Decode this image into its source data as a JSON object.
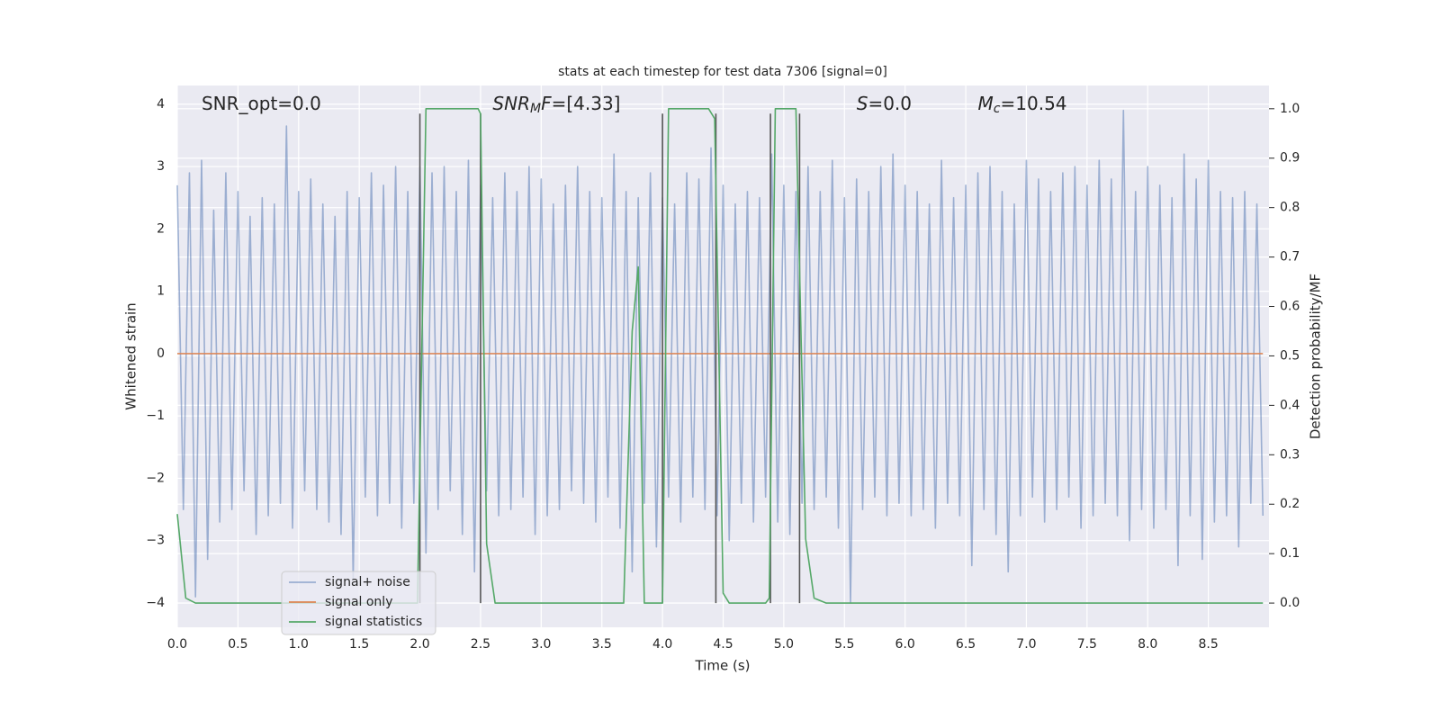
{
  "chart_data": {
    "type": "line",
    "title": "stats at each timestep for test data 7306 [signal=0]",
    "xlabel": "Time (s)",
    "ylabel": "Whitened strain",
    "y2label": "Detection probability/MF",
    "xlim": [
      0,
      9.0
    ],
    "ylim": [
      -4.39,
      4.3
    ],
    "y2lim": [
      -0.049,
      1.047
    ],
    "xticks": [
      {
        "value": 0,
        "label": "0.0"
      },
      {
        "value": 0.5,
        "label": "0.5"
      },
      {
        "value": 1,
        "label": "1.0"
      },
      {
        "value": 1.5,
        "label": "1.5"
      },
      {
        "value": 2,
        "label": "2.0"
      },
      {
        "value": 2.5,
        "label": "2.5"
      },
      {
        "value": 3,
        "label": "3.0"
      },
      {
        "value": 3.5,
        "label": "3.5"
      },
      {
        "value": 4,
        "label": "4.0"
      },
      {
        "value": 4.5,
        "label": "4.5"
      },
      {
        "value": 5,
        "label": "5.0"
      },
      {
        "value": 5.5,
        "label": "5.5"
      },
      {
        "value": 6,
        "label": "6.0"
      },
      {
        "value": 6.5,
        "label": "6.5"
      },
      {
        "value": 7,
        "label": "7.0"
      },
      {
        "value": 7.5,
        "label": "7.5"
      },
      {
        "value": 8,
        "label": "8.0"
      },
      {
        "value": 8.5,
        "label": "8.5"
      }
    ],
    "yticks": [
      {
        "value": -4,
        "label": "−4"
      },
      {
        "value": -3,
        "label": "−3"
      },
      {
        "value": -2,
        "label": "−2"
      },
      {
        "value": -1,
        "label": "−1"
      },
      0,
      1,
      2,
      3,
      4
    ],
    "y2ticks": [
      {
        "value": 0,
        "label": "0.0"
      },
      {
        "value": 0.1,
        "label": "0.1"
      },
      {
        "value": 0.2,
        "label": "0.2"
      },
      {
        "value": 0.3,
        "label": "0.3"
      },
      {
        "value": 0.4,
        "label": "0.4"
      },
      {
        "value": 0.5,
        "label": "0.5"
      },
      {
        "value": 0.6,
        "label": "0.6"
      },
      {
        "value": 0.7,
        "label": "0.7"
      },
      {
        "value": 0.8,
        "label": "0.8"
      },
      {
        "value": 0.9,
        "label": "0.9"
      },
      {
        "value": 1,
        "label": "1.0"
      }
    ],
    "grid": true,
    "legend": "lower left",
    "series": [
      {
        "name": "signal+ noise",
        "color": "#4c72b0",
        "opacity": 0.5,
        "axis": "y",
        "x": [
          0,
          0.05,
          0.1,
          0.15,
          0.2,
          0.25,
          0.3,
          0.35,
          0.4,
          0.45,
          0.5,
          0.55,
          0.6,
          0.65,
          0.7,
          0.75,
          0.8,
          0.85,
          0.9,
          0.95,
          1,
          1.05,
          1.1,
          1.15,
          1.2,
          1.25,
          1.3,
          1.35,
          1.4,
          1.45,
          1.5,
          1.55,
          1.6,
          1.65,
          1.7,
          1.75,
          1.8,
          1.85,
          1.9,
          1.95,
          2,
          2.05,
          2.1,
          2.15,
          2.2,
          2.25,
          2.3,
          2.35,
          2.4,
          2.45,
          2.5,
          2.55,
          2.6,
          2.65,
          2.7,
          2.75,
          2.8,
          2.85,
          2.9,
          2.95,
          3,
          3.05,
          3.1,
          3.15,
          3.2,
          3.25,
          3.3,
          3.35,
          3.4,
          3.45,
          3.5,
          3.55,
          3.6,
          3.65,
          3.7,
          3.75,
          3.8,
          3.85,
          3.9,
          3.95,
          4,
          4.05,
          4.1,
          4.15,
          4.2,
          4.25,
          4.3,
          4.35,
          4.4,
          4.45,
          4.5,
          4.55,
          4.6,
          4.65,
          4.7,
          4.75,
          4.8,
          4.85,
          4.9,
          4.95,
          5,
          5.05,
          5.1,
          5.15,
          5.2,
          5.25,
          5.3,
          5.35,
          5.4,
          5.45,
          5.5,
          5.55,
          5.6,
          5.65,
          5.7,
          5.75,
          5.8,
          5.85,
          5.9,
          5.95,
          6,
          6.05,
          6.1,
          6.15,
          6.2,
          6.25,
          6.3,
          6.35,
          6.4,
          6.45,
          6.5,
          6.55,
          6.6,
          6.65,
          6.7,
          6.75,
          6.8,
          6.85,
          6.9,
          6.95,
          7,
          7.05,
          7.1,
          7.15,
          7.2,
          7.25,
          7.3,
          7.35,
          7.4,
          7.45,
          7.5,
          7.55,
          7.6,
          7.65,
          7.7,
          7.75,
          7.8,
          7.85,
          7.9,
          7.95,
          8,
          8.05,
          8.1,
          8.15,
          8.2,
          8.25,
          8.3,
          8.35,
          8.4,
          8.45,
          8.5,
          8.55,
          8.6,
          8.65,
          8.7,
          8.75,
          8.8,
          8.85,
          8.9,
          8.95
        ],
        "values": [
          2.7,
          -2.5,
          2.9,
          -3.9,
          3.1,
          -3.3,
          2.3,
          -2.7,
          2.9,
          -2.5,
          2.6,
          -2.2,
          2.2,
          -2.9,
          2.5,
          -2.6,
          2.4,
          -2.4,
          3.65,
          -2.8,
          2.6,
          -2.2,
          2.8,
          -2.5,
          2.4,
          -2.7,
          2.2,
          -2.9,
          2.6,
          -3.6,
          2.5,
          -2.3,
          2.9,
          -2.6,
          2.7,
          -2.4,
          3.0,
          -2.8,
          2.6,
          -2.4,
          3.0,
          -3.2,
          2.9,
          -2.5,
          3.0,
          -2.2,
          2.6,
          -2.9,
          3.1,
          -3.5,
          2.7,
          -2.2,
          2.5,
          -2.6,
          2.9,
          -2.5,
          2.6,
          -2.3,
          3.0,
          -2.9,
          2.8,
          -2.6,
          2.4,
          -2.5,
          2.7,
          -2.2,
          3.0,
          -2.4,
          2.6,
          -2.7,
          2.5,
          -2.3,
          3.2,
          -2.8,
          2.6,
          -3.5,
          2.5,
          -2.4,
          2.9,
          -3.1,
          2.5,
          -2.3,
          2.4,
          -2.7,
          2.9,
          -2.3,
          2.8,
          -2.5,
          3.3,
          -2.6,
          2.7,
          -3.0,
          2.4,
          -2.4,
          2.6,
          -2.7,
          2.5,
          -2.3,
          3.2,
          -2.7,
          2.7,
          -2.9,
          2.6,
          -2.4,
          3.0,
          -2.5,
          2.6,
          -2.3,
          3.1,
          -2.8,
          2.5,
          -4.0,
          2.8,
          -2.5,
          2.6,
          -2.3,
          3.0,
          -2.6,
          3.2,
          -2.4,
          2.7,
          -2.6,
          2.6,
          -2.5,
          2.4,
          -2.8,
          3.1,
          -2.4,
          2.5,
          -2.6,
          2.7,
          -3.4,
          2.9,
          -2.5,
          3.0,
          -2.9,
          2.6,
          -3.5,
          2.4,
          -2.6,
          3.1,
          -2.3,
          2.8,
          -2.7,
          2.6,
          -2.5,
          2.9,
          -2.3,
          3.0,
          -2.8,
          2.7,
          -2.6,
          3.1,
          -2.4,
          2.8,
          -2.6,
          3.9,
          -3.0,
          2.6,
          -2.5,
          3.0,
          -2.8,
          2.7,
          -2.5,
          2.5,
          -3.4,
          3.2,
          -2.6,
          2.8,
          -3.3,
          3.1,
          -2.7,
          2.6,
          -2.6,
          2.5,
          -3.1,
          2.6,
          -2.4,
          2.4,
          -2.6
        ]
      },
      {
        "name": "signal only",
        "color": "#dd8452",
        "axis": "y",
        "x": [
          0,
          8.95
        ],
        "values": [
          0,
          0
        ]
      },
      {
        "name": "signal statistics",
        "color": "#55a868",
        "axis": "y2",
        "x": [
          0,
          0.07,
          0.15,
          1.98,
          2.05,
          2.48,
          2.5,
          2.55,
          2.62,
          3.68,
          3.75,
          3.8,
          3.85,
          4.0,
          4.05,
          4.38,
          4.43,
          4.5,
          4.55,
          4.85,
          4.88,
          4.93,
          5.1,
          5.18,
          5.25,
          5.35,
          8.95
        ],
        "values": [
          0.18,
          0.01,
          0.0,
          0.0,
          1.0,
          1.0,
          0.99,
          0.12,
          0.0,
          0.0,
          0.55,
          0.68,
          0.0,
          0.0,
          1.0,
          1.0,
          0.98,
          0.02,
          0.0,
          0.0,
          0.01,
          1.0,
          1.0,
          0.13,
          0.01,
          0.0,
          0.0
        ]
      }
    ],
    "vlines": {
      "x": [
        2.0,
        2.5,
        4.0,
        4.44,
        4.89,
        5.13
      ],
      "ymin": 0,
      "ymax": 0.99,
      "color": "#555555",
      "axis": "y2"
    },
    "annotations": [
      {
        "x": 0.2,
        "y": 4.0,
        "parts": [
          {
            "text": "SNR_opt=0.0"
          }
        ]
      },
      {
        "x": 2.6,
        "y": 4.0,
        "parts": [
          {
            "text": "SNR",
            "italic": true
          },
          {
            "text": "M",
            "italic": true,
            "sub": true
          },
          {
            "text": "F",
            "italic": true
          },
          {
            "text": "=[4.33]"
          }
        ]
      },
      {
        "x": 5.6,
        "y": 4.0,
        "parts": [
          {
            "text": "S",
            "italic": true
          },
          {
            "text": "=0.0"
          }
        ]
      },
      {
        "x": 6.6,
        "y": 4.0,
        "parts": [
          {
            "text": "M",
            "italic": true
          },
          {
            "text": "c",
            "italic": true,
            "sub": true
          },
          {
            "text": "=10.54"
          }
        ]
      }
    ]
  }
}
